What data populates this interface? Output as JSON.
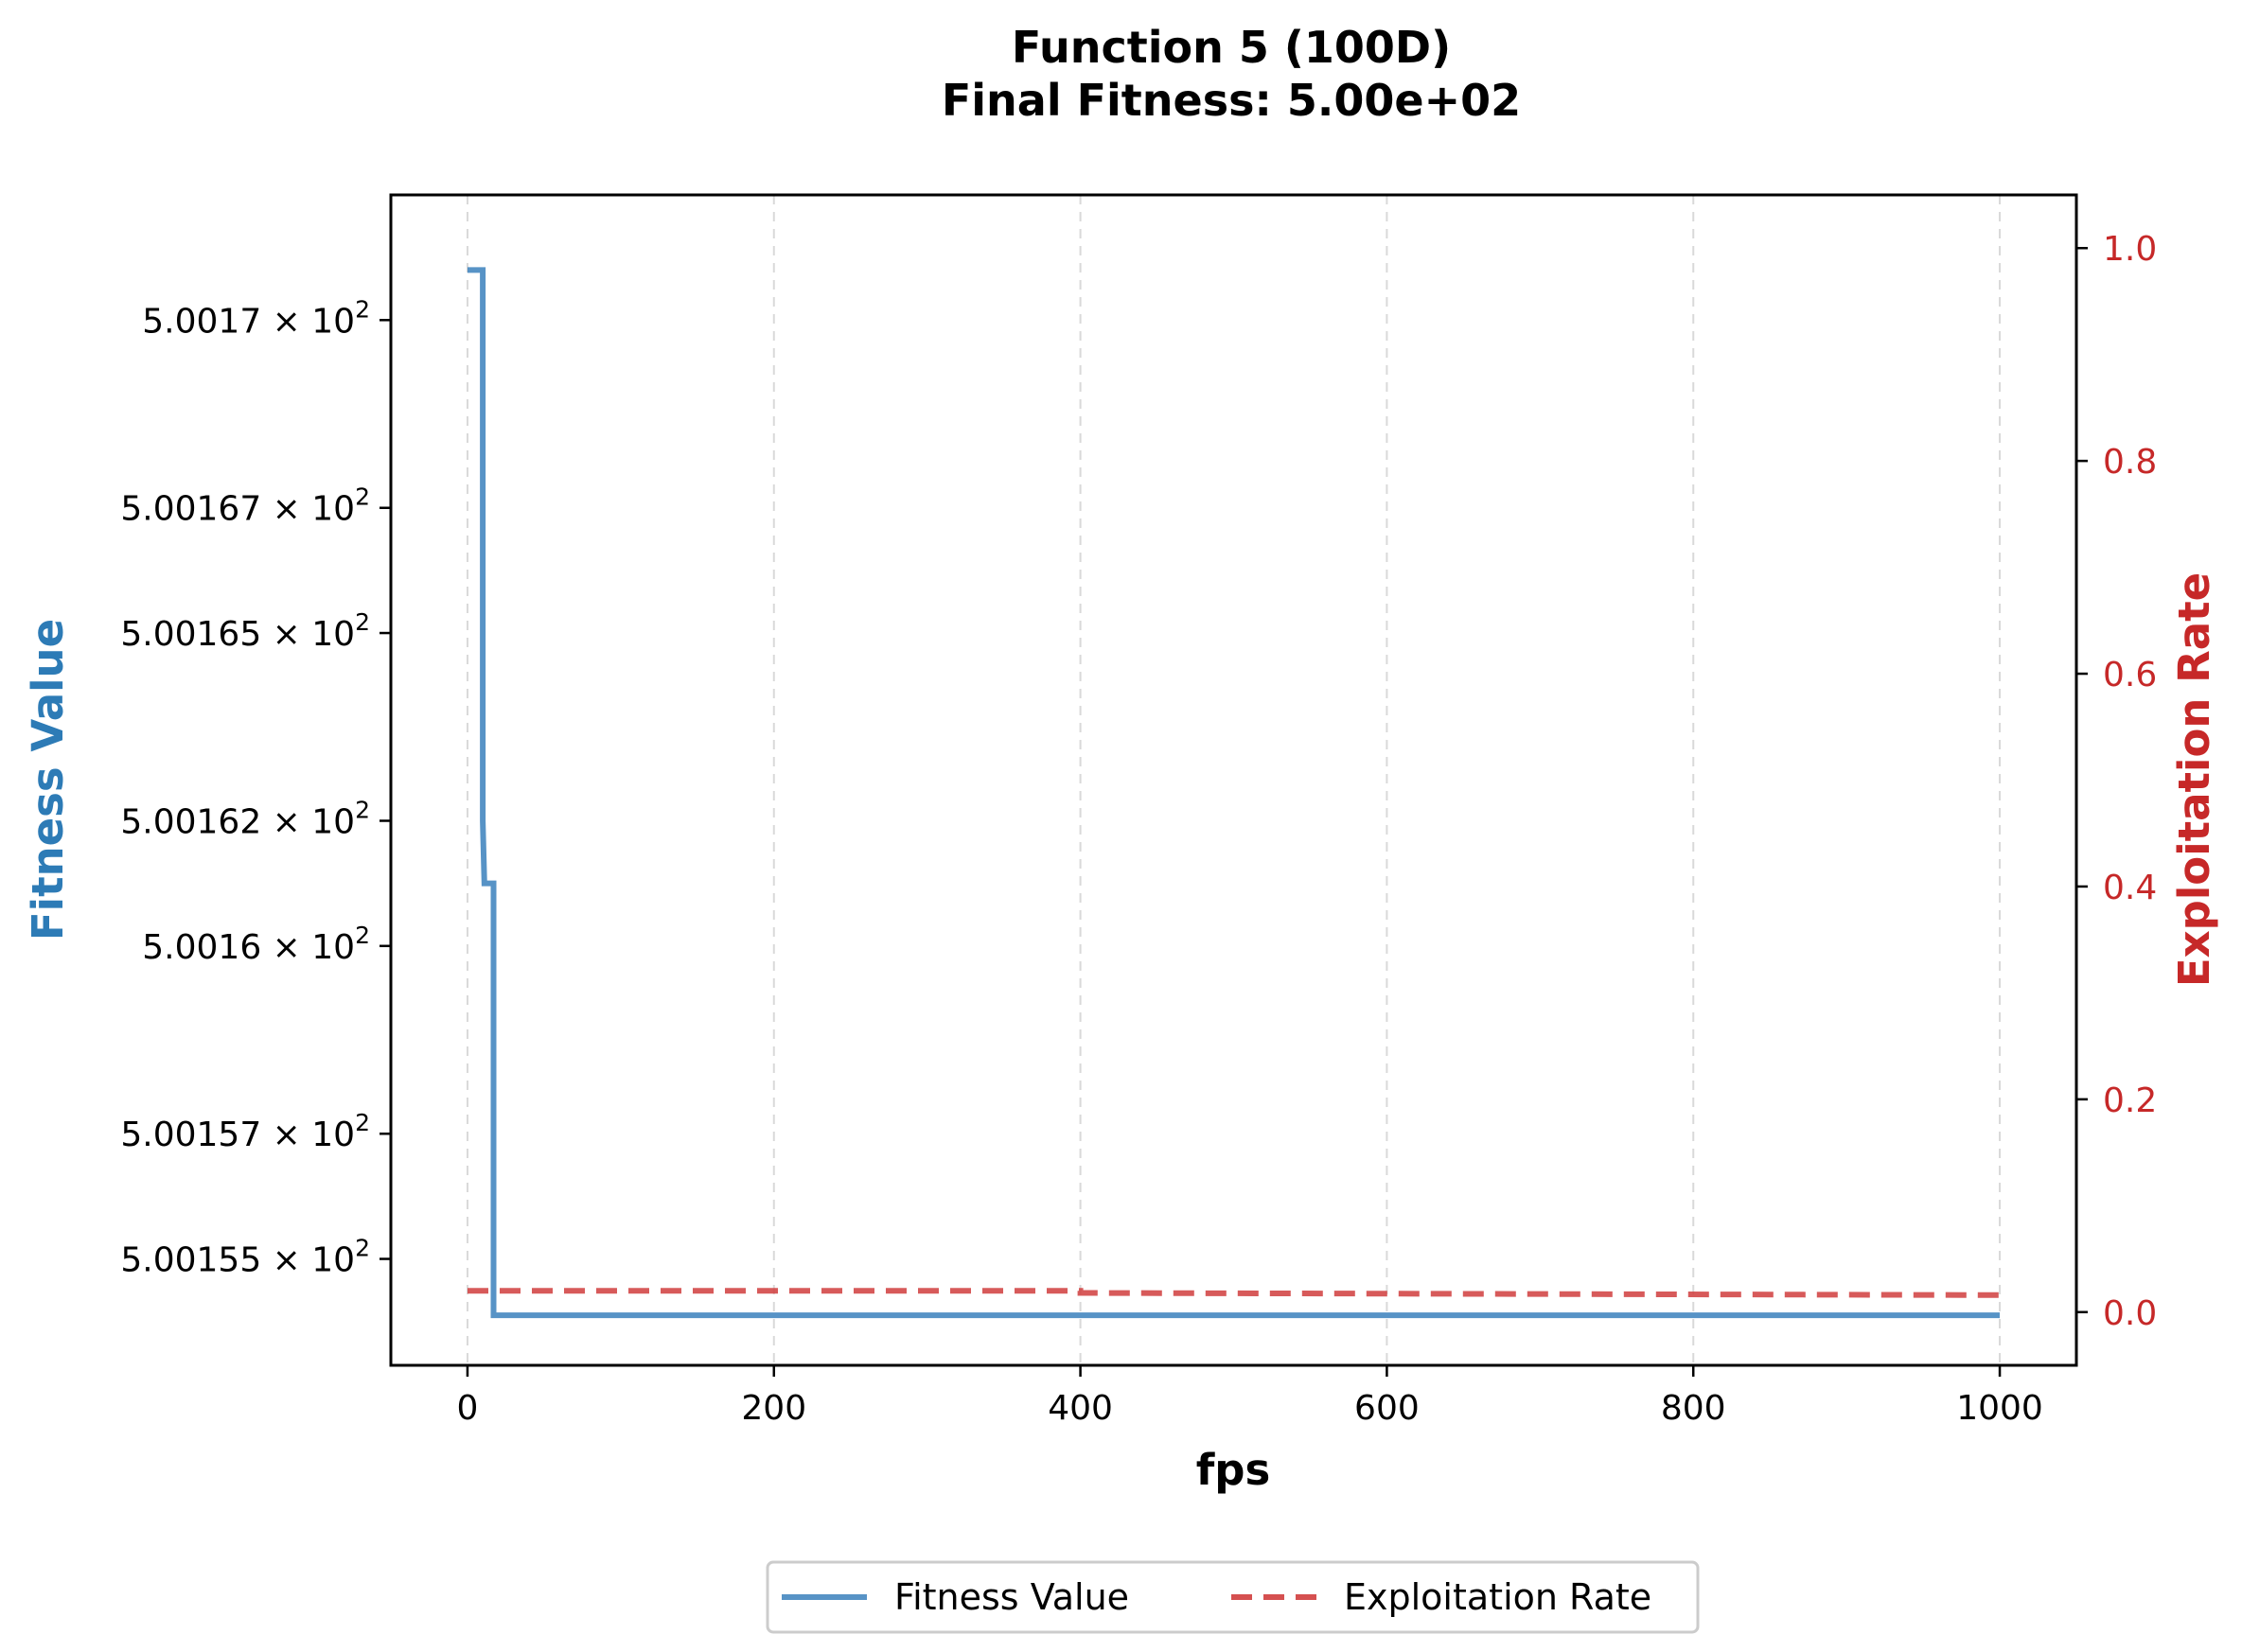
{
  "chart_data": {
    "type": "line",
    "title": "Function 5 (100D)",
    "subtitle": "Final Fitness: 5.00e+02",
    "xlabel": "fps",
    "ylabel_left": "Fitness Value",
    "ylabel_right": "Exploitation Rate",
    "xlim": [
      -50,
      1050
    ],
    "x_ticks": [
      0,
      200,
      400,
      600,
      800,
      1000
    ],
    "x_tick_labels": [
      "0",
      "200",
      "400",
      "600",
      "800",
      "1000"
    ],
    "y_left_ticks": [
      500.17,
      500.167,
      500.165,
      500.162,
      500.16,
      500.157,
      500.155
    ],
    "y_left_tick_labels": [
      {
        "mantissa": "5.0017",
        "base": "10",
        "exp": "2"
      },
      {
        "mantissa": "5.00167",
        "base": "10",
        "exp": "2"
      },
      {
        "mantissa": "5.00165",
        "base": "10",
        "exp": "2"
      },
      {
        "mantissa": "5.00162",
        "base": "10",
        "exp": "2"
      },
      {
        "mantissa": "5.0016",
        "base": "10",
        "exp": "2"
      },
      {
        "mantissa": "5.00157",
        "base": "10",
        "exp": "2"
      },
      {
        "mantissa": "5.00155",
        "base": "10",
        "exp": "2"
      }
    ],
    "y_left_scale": "log",
    "y_left_lim": [
      500.1533,
      500.172
    ],
    "y_right_ticks": [
      0.0,
      0.2,
      0.4,
      0.6,
      0.8,
      1.0
    ],
    "y_right_tick_labels": [
      "0.0",
      "0.2",
      "0.4",
      "0.6",
      "0.8",
      "1.0"
    ],
    "y_right_lim": [
      -0.05,
      1.05
    ],
    "grid": "x-only, dashed",
    "legend_placement": "bottom-center",
    "series": [
      {
        "name": "Fitness Value",
        "axis": "left",
        "style": "solid",
        "color": "#3a80bc",
        "x": [
          0,
          10,
          10,
          11,
          11,
          17,
          17,
          1000
        ],
        "y": [
          500.1708,
          500.1708,
          500.162,
          500.161,
          500.161,
          500.161,
          500.1541,
          500.1541
        ]
      },
      {
        "name": "Exploitation Rate",
        "axis": "right",
        "style": "dashed",
        "color": "#d03d3d",
        "x": [
          0,
          400,
          400,
          1000
        ],
        "y": [
          0.02,
          0.02,
          0.018,
          0.016
        ]
      }
    ]
  }
}
